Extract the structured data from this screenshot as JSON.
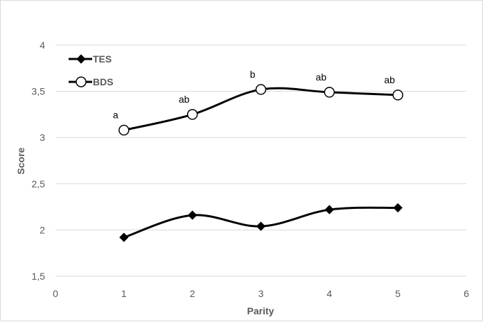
{
  "chart_data": {
    "type": "line",
    "xlabel": "Parity",
    "ylabel": "Score",
    "xlim": [
      0,
      6
    ],
    "ylim": [
      1.5,
      4
    ],
    "x_ticks": [
      "0",
      "1",
      "2",
      "3",
      "4",
      "5",
      "6"
    ],
    "y_ticks": [
      "1,5",
      "2",
      "2,5",
      "3",
      "3,5",
      "4"
    ],
    "grid": "horizontal",
    "legend_position": "top-left",
    "x": [
      1,
      2,
      3,
      4,
      5
    ],
    "series": [
      {
        "name": "TES",
        "marker": "filled-diamond",
        "color": "#000000",
        "values": [
          1.92,
          2.16,
          2.04,
          2.22,
          2.24
        ]
      },
      {
        "name": "BDS",
        "marker": "open-circle",
        "color": "#000000",
        "values": [
          3.08,
          3.25,
          3.52,
          3.49,
          3.46
        ],
        "annotations": [
          "a",
          "ab",
          "b",
          "ab",
          "ab"
        ]
      }
    ]
  }
}
